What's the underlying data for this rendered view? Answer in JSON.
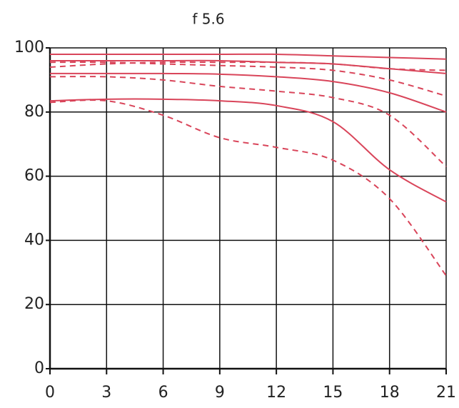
{
  "chart_data": {
    "type": "line",
    "title": "f 5.6",
    "x": [
      0,
      3,
      6,
      9,
      12,
      15,
      18,
      21
    ],
    "series": [
      {
        "color": "#d9455a",
        "dashed": false,
        "values": [
          98,
          98,
          98,
          98,
          98,
          97.5,
          97,
          96.5
        ]
      },
      {
        "color": "#d9455a",
        "dashed": true,
        "values": [
          94,
          95,
          95.5,
          95.5,
          95.5,
          95,
          93.5,
          93
        ]
      },
      {
        "color": "#d9455a",
        "dashed": false,
        "values": [
          96,
          96,
          96,
          96,
          95.5,
          95,
          93.5,
          92
        ]
      },
      {
        "color": "#d9455a",
        "dashed": true,
        "values": [
          95.5,
          95.5,
          95,
          94.5,
          94,
          93,
          90,
          85
        ]
      },
      {
        "color": "#d9455a",
        "dashed": false,
        "values": [
          92,
          92,
          92,
          91.8,
          91,
          89.5,
          86,
          80
        ]
      },
      {
        "color": "#d9455a",
        "dashed": true,
        "values": [
          91,
          91,
          90,
          88,
          86.5,
          84.5,
          79,
          63
        ]
      },
      {
        "color": "#d9455a",
        "dashed": false,
        "values": [
          83.5,
          84,
          84,
          83.5,
          82,
          77,
          62,
          52
        ]
      },
      {
        "color": "#d9455a",
        "dashed": true,
        "values": [
          83,
          83.5,
          79,
          72,
          69,
          65,
          53,
          29
        ]
      }
    ],
    "xlim": [
      0,
      21
    ],
    "xticks": [
      0,
      3,
      6,
      9,
      12,
      15,
      18,
      21
    ],
    "ylim": [
      0,
      100
    ],
    "yticks": [
      0,
      20,
      40,
      60,
      80,
      100
    ],
    "grid": true
  }
}
